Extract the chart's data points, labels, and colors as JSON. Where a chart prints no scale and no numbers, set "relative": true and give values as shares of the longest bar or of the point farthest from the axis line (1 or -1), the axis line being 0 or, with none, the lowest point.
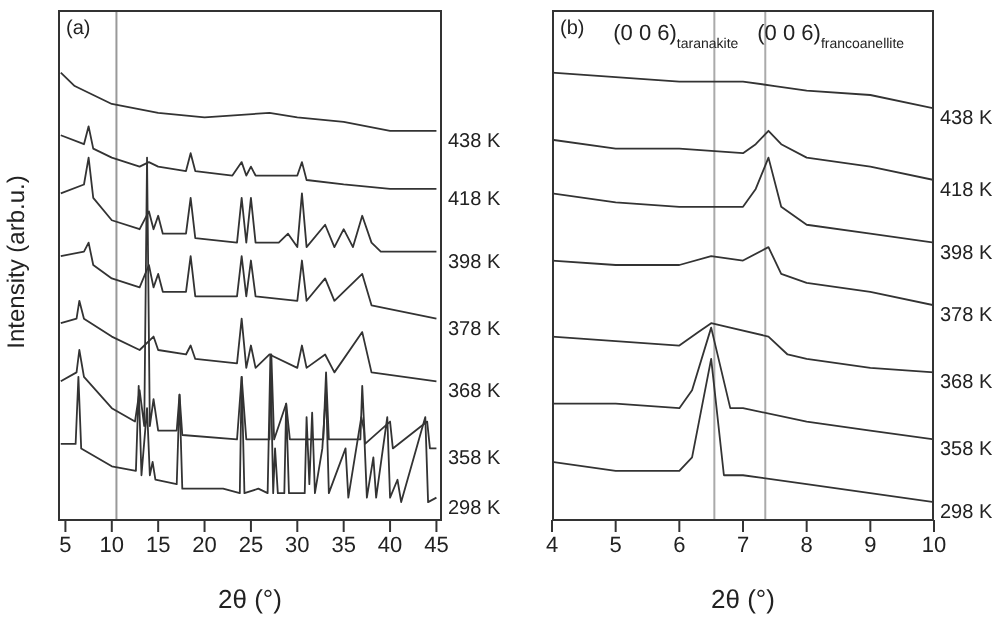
{
  "chart_data": [
    {
      "type": "line",
      "relative": true,
      "xlim": [
        4.2,
        45.6
      ],
      "xticks": [
        5,
        10,
        15,
        20,
        25,
        30,
        35,
        40,
        45
      ],
      "tick_labels": "x",
      "marker": "none",
      "xlabel": "2θ (°)",
      "ylabel": "Intensity (arb.u.)",
      "annotations": [
        "(a)"
      ],
      "ref_lines": [
        {
          "axis": "x",
          "value": 10.5,
          "color": "#999999"
        }
      ],
      "series": [
        {
          "name": "438 K",
          "color": "#333333",
          "x": [
            4.5,
            6,
            8,
            10,
            15,
            20,
            27,
            30,
            35,
            40,
            45
          ],
          "values": [
            1.0,
            0.97,
            0.95,
            0.93,
            0.91,
            0.9,
            0.91,
            0.9,
            0.89,
            0.87,
            0.87
          ]
        },
        {
          "name": "418 K",
          "color": "#333333",
          "x": [
            4.5,
            7,
            7.5,
            8,
            10,
            13,
            14,
            15,
            18,
            18.5,
            19,
            23,
            24,
            24.5,
            25,
            25.5,
            30,
            30.5,
            31,
            35,
            40,
            45
          ],
          "values": [
            0.86,
            0.84,
            0.88,
            0.83,
            0.81,
            0.79,
            0.8,
            0.79,
            0.78,
            0.82,
            0.78,
            0.77,
            0.8,
            0.77,
            0.79,
            0.77,
            0.77,
            0.8,
            0.76,
            0.75,
            0.74,
            0.74
          ]
        },
        {
          "name": "398 K",
          "color": "#333333",
          "x": [
            4.5,
            7,
            7.5,
            8,
            10,
            13,
            14,
            14.5,
            15,
            15.5,
            18,
            18.5,
            19,
            23.5,
            24,
            24.5,
            25,
            25.5,
            28,
            29,
            30,
            30.5,
            31,
            33,
            34,
            35,
            36,
            37,
            38,
            39,
            45
          ],
          "values": [
            0.73,
            0.75,
            0.81,
            0.72,
            0.67,
            0.65,
            0.69,
            0.65,
            0.68,
            0.64,
            0.64,
            0.72,
            0.63,
            0.62,
            0.72,
            0.62,
            0.72,
            0.62,
            0.62,
            0.64,
            0.61,
            0.73,
            0.61,
            0.66,
            0.61,
            0.65,
            0.61,
            0.68,
            0.62,
            0.6,
            0.6
          ]
        },
        {
          "name": "378 K",
          "color": "#333333",
          "x": [
            4.5,
            7,
            7.5,
            8,
            10,
            13,
            14,
            14.5,
            15,
            15.5,
            18,
            18.5,
            19,
            23.5,
            24,
            24.5,
            25,
            25.5,
            30,
            30.5,
            31,
            33,
            34,
            37,
            38,
            45
          ],
          "values": [
            0.59,
            0.6,
            0.62,
            0.57,
            0.54,
            0.52,
            0.57,
            0.52,
            0.55,
            0.51,
            0.51,
            0.59,
            0.5,
            0.5,
            0.59,
            0.5,
            0.58,
            0.5,
            0.49,
            0.58,
            0.49,
            0.54,
            0.49,
            0.55,
            0.48,
            0.45
          ]
        },
        {
          "name": "368 K",
          "color": "#333333",
          "x": [
            4.5,
            6.2,
            6.5,
            7,
            10,
            13,
            14.5,
            15,
            18,
            18.5,
            19,
            23.5,
            24,
            24.5,
            25,
            25.5,
            27,
            30,
            30.5,
            31,
            33,
            34,
            37,
            38,
            45
          ],
          "values": [
            0.44,
            0.45,
            0.49,
            0.45,
            0.41,
            0.38,
            0.41,
            0.38,
            0.37,
            0.39,
            0.36,
            0.35,
            0.45,
            0.34,
            0.39,
            0.34,
            0.37,
            0.34,
            0.39,
            0.34,
            0.37,
            0.33,
            0.42,
            0.33,
            0.31
          ]
        },
        {
          "name": "358 K",
          "color": "#333333",
          "x": [
            4.5,
            6.2,
            6.5,
            7,
            10,
            12.5,
            13,
            13.5,
            13.8,
            14.1,
            14.5,
            15,
            17,
            17.3,
            17.6,
            23.5,
            24,
            24.5,
            27,
            27.2,
            27.5,
            28.8,
            29.2,
            32.8,
            33.1,
            33.4,
            36.8,
            37,
            37.3,
            40,
            40.3,
            44,
            44.3,
            45
          ],
          "values": [
            0.31,
            0.33,
            0.38,
            0.32,
            0.25,
            0.22,
            0.29,
            0.21,
            0.81,
            0.21,
            0.27,
            0.2,
            0.2,
            0.28,
            0.19,
            0.18,
            0.32,
            0.18,
            0.18,
            0.37,
            0.18,
            0.26,
            0.18,
            0.18,
            0.33,
            0.18,
            0.18,
            0.3,
            0.17,
            0.22,
            0.16,
            0.22,
            0.16,
            0.16
          ]
        },
        {
          "name": "298 K",
          "color": "#333333",
          "x": [
            4.5,
            6.1,
            6.4,
            6.7,
            10,
            12.6,
            12.9,
            13.2,
            13.8,
            14.1,
            14.4,
            14.7,
            17,
            17.3,
            17.6,
            20.3,
            22,
            23.8,
            24,
            24.3,
            25.8,
            26.8,
            27.1,
            27.4,
            27.6,
            27.9,
            28.6,
            28.8,
            29.1,
            30.8,
            31,
            31.3,
            31.6,
            31.9,
            32.7,
            33.1,
            33.4,
            35.2,
            35.5,
            36.9,
            37.2,
            37.5,
            38.2,
            38.5,
            39.7,
            40,
            40.8,
            41.2,
            43.8,
            44.1,
            45
          ],
          "values": [
            0.17,
            0.17,
            0.32,
            0.16,
            0.12,
            0.11,
            0.3,
            0.1,
            0.25,
            0.1,
            0.13,
            0.09,
            0.08,
            0.28,
            0.07,
            0.07,
            0.07,
            0.06,
            0.32,
            0.06,
            0.07,
            0.06,
            0.37,
            0.06,
            0.16,
            0.06,
            0.06,
            0.26,
            0.06,
            0.06,
            0.23,
            0.08,
            0.24,
            0.06,
            0.16,
            0.29,
            0.06,
            0.16,
            0.05,
            0.23,
            0.2,
            0.05,
            0.14,
            0.05,
            0.23,
            0.05,
            0.09,
            0.04,
            0.23,
            0.04,
            0.05
          ]
        }
      ]
    },
    {
      "type": "line",
      "relative": true,
      "xlim": [
        4,
        10
      ],
      "xticks": [
        4,
        5,
        6,
        7,
        8,
        9,
        10
      ],
      "tick_labels": "x",
      "marker": "none",
      "xlabel": "2θ (°)",
      "annotations": [
        "(b)"
      ],
      "ref_lines": [
        {
          "axis": "x",
          "value": 6.55,
          "label": "(0 0 6)$_{taranakite}$",
          "color": "#aaaaaa"
        },
        {
          "axis": "x",
          "value": 7.35,
          "label": "(0 0 6)$_{francoanellite}$",
          "color": "#aaaaaa"
        }
      ],
      "series": [
        {
          "name": "438 K",
          "color": "#333333",
          "x": [
            4,
            5,
            6,
            7,
            7.5,
            8,
            9,
            10
          ],
          "values": [
            1.0,
            0.99,
            0.98,
            0.98,
            0.97,
            0.96,
            0.95,
            0.92
          ]
        },
        {
          "name": "418 K",
          "color": "#333333",
          "x": [
            4,
            5,
            6,
            7,
            7.2,
            7.4,
            7.6,
            8,
            9,
            10
          ],
          "values": [
            0.85,
            0.83,
            0.83,
            0.82,
            0.84,
            0.87,
            0.84,
            0.81,
            0.79,
            0.76
          ]
        },
        {
          "name": "398 K",
          "color": "#333333",
          "x": [
            4,
            5,
            6,
            7,
            7.2,
            7.4,
            7.6,
            8,
            9,
            10
          ],
          "values": [
            0.73,
            0.71,
            0.7,
            0.7,
            0.74,
            0.81,
            0.7,
            0.66,
            0.64,
            0.62
          ]
        },
        {
          "name": "378 K",
          "color": "#333333",
          "x": [
            4,
            5,
            6,
            6.5,
            7,
            7.4,
            7.6,
            8,
            9,
            10
          ],
          "values": [
            0.58,
            0.57,
            0.57,
            0.59,
            0.58,
            0.61,
            0.55,
            0.53,
            0.51,
            0.48
          ]
        },
        {
          "name": "368 K",
          "color": "#333333",
          "x": [
            4,
            5,
            6,
            6.3,
            6.5,
            6.8,
            7.4,
            7.7,
            8,
            9,
            10
          ],
          "values": [
            0.41,
            0.4,
            0.39,
            0.42,
            0.44,
            0.43,
            0.41,
            0.37,
            0.36,
            0.34,
            0.33
          ]
        },
        {
          "name": "358 K",
          "color": "#333333",
          "x": [
            4,
            5,
            6,
            6.2,
            6.5,
            6.8,
            7,
            8,
            9,
            10
          ],
          "values": [
            0.26,
            0.26,
            0.25,
            0.29,
            0.43,
            0.25,
            0.25,
            0.22,
            0.2,
            0.18
          ]
        },
        {
          "name": "298 K",
          "color": "#333333",
          "x": [
            4,
            5,
            6,
            6.2,
            6.5,
            6.7,
            7,
            8,
            9,
            10
          ],
          "values": [
            0.13,
            0.11,
            0.11,
            0.14,
            0.36,
            0.1,
            0.1,
            0.08,
            0.06,
            0.04
          ]
        }
      ]
    }
  ]
}
